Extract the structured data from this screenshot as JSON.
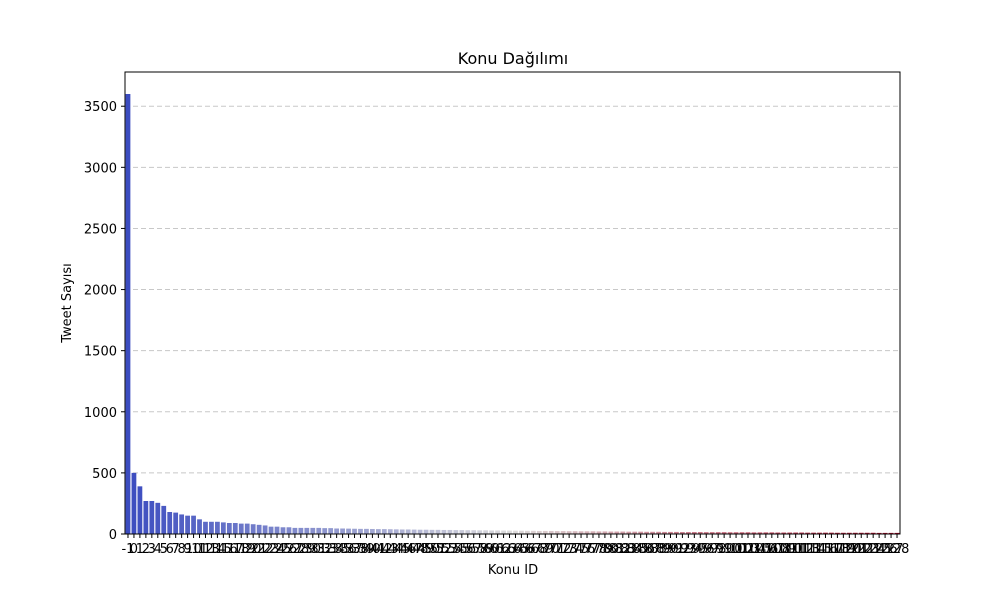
{
  "chart_data": {
    "type": "bar",
    "title": "Konu Dağılımı",
    "xlabel": "Konu ID",
    "ylabel": "Tweet Sayısı",
    "ylim": [
      0,
      3780
    ],
    "yticks": [
      0,
      500,
      1000,
      1500,
      2000,
      2500,
      3000,
      3500
    ],
    "grid": "y-dashed",
    "legend": "none",
    "categories": [
      "-1",
      "0",
      "1",
      "2",
      "3",
      "4",
      "5",
      "6",
      "7",
      "8",
      "9",
      "10",
      "11",
      "12",
      "13",
      "14",
      "15",
      "16",
      "17",
      "18",
      "19",
      "20",
      "21",
      "22",
      "23",
      "24",
      "25",
      "26",
      "27",
      "28",
      "29",
      "30",
      "31",
      "32",
      "33",
      "34",
      "35",
      "36",
      "37",
      "38",
      "39",
      "40",
      "41",
      "42",
      "43",
      "44",
      "45",
      "46",
      "47",
      "48",
      "49",
      "50",
      "51",
      "52",
      "53",
      "54",
      "55",
      "56",
      "57",
      "58",
      "59",
      "60",
      "61",
      "62",
      "63",
      "64",
      "65",
      "66",
      "67",
      "68",
      "69",
      "70",
      "71",
      "72",
      "73",
      "74",
      "75",
      "76",
      "77",
      "78",
      "79",
      "80",
      "81",
      "82",
      "83",
      "84",
      "85",
      "86",
      "87",
      "88",
      "89",
      "90",
      "91",
      "92",
      "93",
      "94",
      "95",
      "96",
      "97",
      "98",
      "99",
      "100",
      "101",
      "102",
      "103",
      "104",
      "105",
      "106",
      "107",
      "108",
      "109",
      "110",
      "111",
      "112",
      "113",
      "114",
      "115",
      "116",
      "117",
      "118",
      "119",
      "120",
      "121",
      "122",
      "123",
      "124",
      "125",
      "126",
      "127",
      "128"
    ],
    "values": [
      3600,
      500,
      390,
      270,
      270,
      255,
      230,
      180,
      175,
      160,
      150,
      150,
      120,
      100,
      100,
      100,
      95,
      90,
      90,
      85,
      85,
      80,
      75,
      70,
      60,
      60,
      55,
      55,
      50,
      50,
      50,
      50,
      50,
      48,
      48,
      45,
      45,
      44,
      43,
      42,
      42,
      41,
      40,
      40,
      39,
      38,
      37,
      37,
      36,
      35,
      35,
      34,
      34,
      33,
      33,
      32,
      32,
      31,
      31,
      30,
      30,
      29,
      29,
      28,
      28,
      27,
      27,
      26,
      26,
      25,
      25,
      25,
      24,
      24,
      23,
      23,
      22,
      22,
      22,
      21,
      21,
      20,
      20,
      20,
      19,
      19,
      19,
      18,
      18,
      18,
      17,
      17,
      17,
      16,
      16,
      16,
      16,
      15,
      15,
      15,
      15,
      14,
      14,
      14,
      14,
      13,
      13,
      13,
      13,
      12,
      12,
      12,
      12,
      12,
      11,
      11,
      11,
      11,
      11,
      10,
      10,
      10,
      10,
      10,
      10,
      10,
      9,
      9,
      9,
      9
    ],
    "colors": {
      "bar_start": "#3b4cc0",
      "bar_mid": "#dddcdc",
      "bar_end": "#b40426",
      "grid": "#c8c8c8"
    }
  }
}
